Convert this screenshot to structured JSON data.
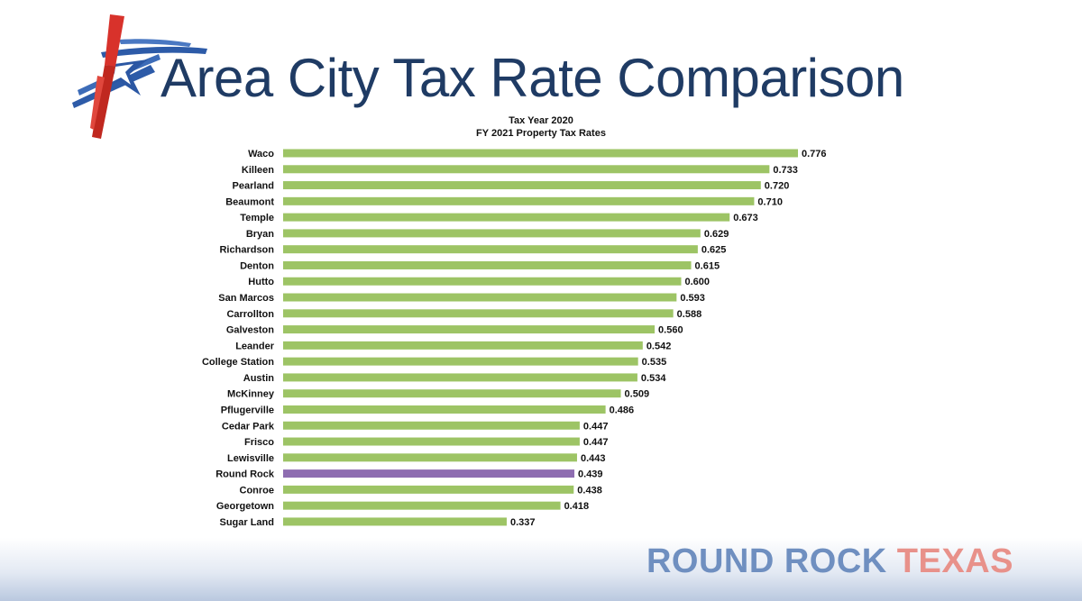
{
  "header": {
    "title": "Area City Tax Rate Comparison"
  },
  "brand": {
    "name_primary": "ROUND ROCK",
    "name_secondary": "TEXAS",
    "logo_icon": "star-flag-logo-icon"
  },
  "colors": {
    "title": "#1f3b64",
    "bar_default": "#9dc465",
    "bar_highlight": "#8e6db1",
    "brand_primary": "#6f8fc0",
    "brand_secondary": "#e8918a"
  },
  "chart_data": {
    "type": "bar",
    "orientation": "horizontal",
    "title": "Tax Year 2020",
    "subtitle": "FY 2021 Property Tax Rates",
    "xlabel": "",
    "ylabel": "",
    "xlim": [
      0,
      0.8
    ],
    "grid": false,
    "legend": "none",
    "highlight": "Round Rock",
    "categories": [
      "Waco",
      "Killeen",
      "Pearland",
      "Beaumont",
      "Temple",
      "Bryan",
      "Richardson",
      "Denton",
      "Hutto",
      "San Marcos",
      "Carrollton",
      "Galveston",
      "Leander",
      "College Station",
      "Austin",
      "McKinney",
      "Pflugerville",
      "Cedar Park",
      "Frisco",
      "Lewisville",
      "Round Rock",
      "Conroe",
      "Georgetown",
      "Sugar Land"
    ],
    "values": [
      0.776,
      0.733,
      0.72,
      0.71,
      0.673,
      0.629,
      0.625,
      0.615,
      0.6,
      0.593,
      0.588,
      0.56,
      0.542,
      0.535,
      0.534,
      0.509,
      0.486,
      0.447,
      0.447,
      0.443,
      0.439,
      0.438,
      0.418,
      0.337
    ],
    "value_labels": [
      "0.776",
      "0.733",
      "0.720",
      "0.710",
      "0.673",
      "0.629",
      "0.625",
      "0.615",
      "0.600",
      "0.593",
      "0.588",
      "0.560",
      "0.542",
      "0.535",
      "0.534",
      "0.509",
      "0.486",
      "0.447",
      "0.447",
      "0.443",
      "0.439",
      "0.438",
      "0.418",
      "0.337"
    ]
  }
}
